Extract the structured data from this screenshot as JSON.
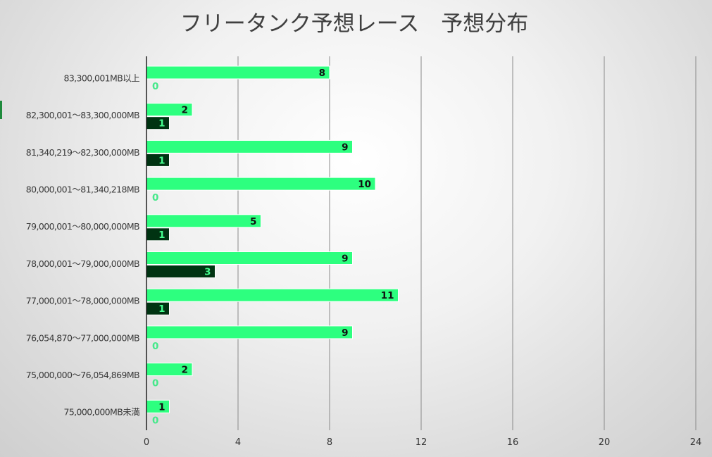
{
  "chart_data": {
    "type": "bar",
    "orientation": "horizontal",
    "title": "フリータンク予想レース　予想分布",
    "categories": [
      "83,300,001MB以上",
      "82,300,001～83,300,000MB",
      "81,340,219～82,300,000MB",
      "80,000,001～81,340,218MB",
      "79,000,001～80,000,000MB",
      "78,000,001～79,000,000MB",
      "77,000,001～78,000,000MB",
      "76,054,870～77,000,000MB",
      "75,000,000～76,054,869MB",
      "75,000,000MB未満"
    ],
    "series": [
      {
        "values": [
          8,
          2,
          9,
          10,
          5,
          9,
          11,
          9,
          2,
          1
        ],
        "color": "#2dff7f",
        "label_color": "#111111"
      },
      {
        "values": [
          0,
          1,
          1,
          0,
          1,
          3,
          1,
          0,
          0,
          0
        ],
        "color": "#003312",
        "label_color": "#45ff8f"
      }
    ],
    "xlim": [
      0,
      24
    ],
    "xticks": [
      0,
      4,
      8,
      12,
      16,
      20,
      24
    ],
    "grid": true,
    "legend": "none"
  }
}
